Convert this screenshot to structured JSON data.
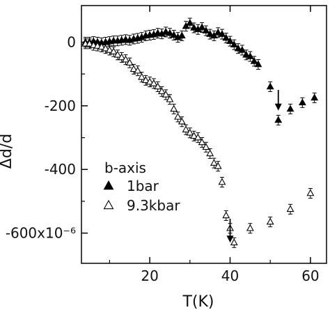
{
  "chart_data": {
    "type": "scatter",
    "xlabel": "T(K)",
    "ylabel": "Δd/d",
    "xlim": [
      3,
      64
    ],
    "ylim": [
      -695,
      115
    ],
    "x_ticks": [
      20,
      40,
      60
    ],
    "x_minor_ticks": [
      10,
      30,
      50
    ],
    "y_ticks": [
      0,
      -200,
      -400,
      -600
    ],
    "y_minor_ticks": [
      -100,
      -300,
      -500
    ],
    "y_tick_labels": [
      "0",
      "-200",
      "-400",
      "-600x10⁻⁶"
    ],
    "legend": {
      "title": "b-axis",
      "position": "lower-left",
      "entries": [
        "1bar",
        "9.3kbar"
      ]
    },
    "series": [
      {
        "name": "1bar",
        "marker": "filled-triangle",
        "color": "#000000",
        "x": [
          4,
          5,
          6,
          7,
          8,
          9,
          10,
          11,
          12,
          13,
          14,
          15,
          16,
          17,
          18,
          19,
          20,
          21,
          22,
          23,
          24,
          25,
          26,
          27,
          28,
          29,
          30,
          31,
          32,
          33,
          34,
          35,
          36,
          37,
          38,
          39,
          40,
          41,
          42,
          43,
          44,
          45,
          46,
          47,
          50,
          52,
          55,
          58,
          61
        ],
        "y": [
          0,
          0,
          2,
          0,
          -2,
          0,
          2,
          4,
          4,
          6,
          8,
          6,
          10,
          12,
          15,
          20,
          22,
          24,
          28,
          26,
          32,
          28,
          22,
          15,
          20,
          50,
          60,
          45,
          40,
          46,
          36,
          25,
          20,
          30,
          25,
          13,
          3,
          -8,
          -20,
          -25,
          -40,
          -45,
          -60,
          -70,
          -140,
          -245,
          -210,
          -190,
          -175
        ]
      },
      {
        "name": "9.3kbar",
        "marker": "open-triangle",
        "color": "#000000",
        "x": [
          4,
          5,
          6,
          7,
          8,
          9,
          10,
          11,
          12,
          13,
          14,
          15,
          16,
          17,
          18,
          19,
          20,
          21,
          22,
          23,
          24,
          25,
          26,
          27,
          28,
          29,
          30,
          31,
          32,
          33,
          34,
          35,
          36,
          37,
          38,
          39,
          40,
          41,
          45,
          50,
          55,
          60
        ],
        "y": [
          -5,
          -5,
          -10,
          -12,
          -15,
          -20,
          -25,
          -30,
          -40,
          -48,
          -55,
          -65,
          -85,
          -90,
          -110,
          -120,
          -125,
          -130,
          -140,
          -155,
          -165,
          -180,
          -210,
          -235,
          -250,
          -275,
          -285,
          -295,
          -300,
          -315,
          -330,
          -350,
          -380,
          -390,
          -440,
          -545,
          -585,
          -630,
          -585,
          -565,
          -525,
          -475
        ]
      }
    ],
    "annotations": [
      {
        "type": "arrow-down",
        "x": 52,
        "y_from": -150,
        "y_to": -215
      },
      {
        "type": "arrow-down",
        "x": 40,
        "y_from": -555,
        "y_to": -630
      }
    ]
  }
}
